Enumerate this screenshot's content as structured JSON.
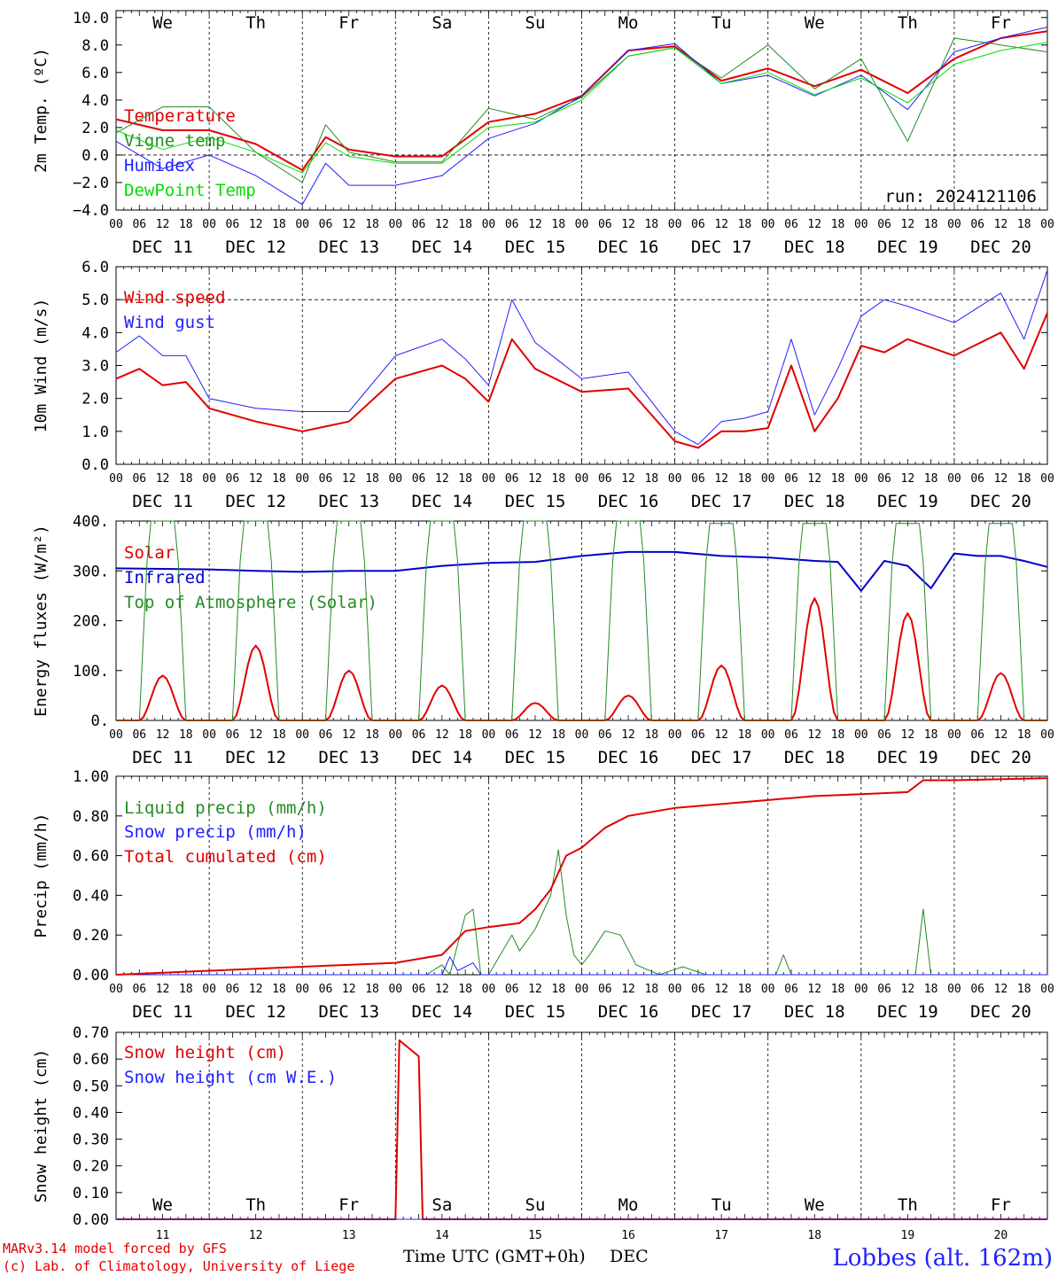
{
  "footer": {
    "model": "MARv3.14 model forced by GFS",
    "copyright": "(c) Lab. of Climatology, University of Liege",
    "station": "Lobbes (alt. 162m)",
    "time_label": "Time UTC (GMT+0h)",
    "month_label": "DEC"
  },
  "run_label": "run: 2024121106",
  "days": [
    "We",
    "Th",
    "Fr",
    "Sa",
    "Su",
    "Mo",
    "Tu",
    "We",
    "Th",
    "Fr"
  ],
  "day_colors": [
    "#000000",
    "#000000",
    "#000000",
    "#e00000",
    "#e00000",
    "#000000",
    "#000000",
    "#000000",
    "#000000",
    "#000000"
  ],
  "dates": [
    "DEC 11",
    "DEC 12",
    "DEC 13",
    "DEC 14",
    "DEC 15",
    "DEC 16",
    "DEC 17",
    "DEC 18",
    "DEC 19",
    "DEC 20"
  ],
  "date_numbers": [
    "11",
    "12",
    "13",
    "14",
    "15",
    "16",
    "17",
    "18",
    "19",
    "20"
  ],
  "hour_ticks": [
    "00",
    "06",
    "12",
    "18"
  ],
  "chart_data": [
    {
      "type": "line",
      "id": "temp",
      "ylabel": "2m Temp. (ºC)",
      "ylim": [
        -4,
        10.5
      ],
      "yticks": [
        -4,
        -2,
        0,
        2,
        4,
        6,
        8,
        10
      ],
      "ytick_labels": [
        "−4.0",
        "−2.0",
        "0.0",
        "2.0",
        "4.0",
        "6.0",
        "8.0",
        "10.0"
      ],
      "ref_line": 0,
      "show_days": true,
      "hours": [
        0,
        12,
        24,
        36,
        48,
        54,
        60,
        72,
        84,
        96,
        108,
        120,
        132,
        144,
        156,
        168,
        180,
        192,
        204,
        216,
        228,
        240
      ],
      "series": [
        {
          "name": "Temperature",
          "color": "#e00000",
          "width": 2,
          "values": [
            2.6,
            1.8,
            1.8,
            0.8,
            -1.1,
            1.3,
            0.4,
            -0.1,
            -0.1,
            2.4,
            3.0,
            4.3,
            7.6,
            7.9,
            5.4,
            6.3,
            5.0,
            6.2,
            4.5,
            7.0,
            8.5,
            9.0
          ]
        },
        {
          "name": "Vigne temp",
          "color": "#228b22",
          "width": 1,
          "values": [
            1.6,
            3.5,
            3.5,
            0.2,
            -2.0,
            2.2,
            0.2,
            -0.5,
            -0.5,
            3.4,
            2.6,
            4.2,
            7.2,
            7.8,
            5.6,
            8.0,
            4.8,
            7.0,
            1.0,
            8.5,
            8.0,
            7.5
          ]
        },
        {
          "name": "Humidex",
          "color": "#2020ff",
          "width": 1,
          "values": [
            1.0,
            -1.0,
            0.0,
            -1.5,
            -3.6,
            -0.6,
            -2.2,
            -2.2,
            -1.5,
            1.2,
            2.3,
            4.3,
            7.6,
            8.1,
            5.2,
            5.8,
            4.3,
            5.8,
            3.3,
            7.5,
            8.5,
            9.3
          ]
        },
        {
          "name": "DewPoint Temp",
          "color": "#00dd00",
          "width": 1,
          "values": [
            1.8,
            0.4,
            1.3,
            0.2,
            -1.3,
            0.9,
            -0.1,
            -0.6,
            -0.6,
            2.0,
            2.4,
            4.0,
            7.2,
            7.8,
            5.2,
            6.0,
            4.4,
            5.6,
            3.8,
            6.6,
            7.6,
            8.2
          ]
        }
      ]
    },
    {
      "type": "line",
      "id": "wind",
      "ylabel": "10m Wind (m/s)",
      "ylim": [
        0,
        6
      ],
      "yticks": [
        0,
        1,
        2,
        3,
        4,
        5,
        6
      ],
      "ytick_labels": [
        "0.0",
        "1.0",
        "2.0",
        "3.0",
        "4.0",
        "5.0",
        "6.0"
      ],
      "ref_line": 5,
      "hours": [
        0,
        6,
        12,
        18,
        24,
        36,
        48,
        60,
        72,
        84,
        90,
        96,
        102,
        108,
        120,
        132,
        144,
        150,
        156,
        162,
        168,
        174,
        180,
        186,
        192,
        198,
        204,
        216,
        228,
        234,
        240
      ],
      "series": [
        {
          "name": "Wind speed",
          "color": "#e00000",
          "width": 2,
          "values": [
            2.6,
            2.9,
            2.4,
            2.5,
            1.7,
            1.3,
            1.0,
            1.3,
            2.6,
            3.0,
            2.6,
            1.9,
            3.8,
            2.9,
            2.2,
            2.3,
            0.7,
            0.5,
            1.0,
            1.0,
            1.1,
            3.0,
            1.0,
            2.0,
            3.6,
            3.4,
            3.8,
            3.3,
            4.0,
            2.9,
            4.6
          ]
        },
        {
          "name": "Wind gust",
          "color": "#2020ff",
          "width": 1,
          "values": [
            3.4,
            3.9,
            3.3,
            3.3,
            2.0,
            1.7,
            1.6,
            1.6,
            3.3,
            3.8,
            3.2,
            2.4,
            5.0,
            3.7,
            2.6,
            2.8,
            1.0,
            0.6,
            1.3,
            1.4,
            1.6,
            3.8,
            1.5,
            2.9,
            4.5,
            5.0,
            4.8,
            4.3,
            5.2,
            3.8,
            5.9
          ]
        }
      ]
    },
    {
      "type": "line",
      "id": "energy",
      "ylabel": "Energy fluxes (W/m²)",
      "ylim": [
        0,
        400
      ],
      "yticks": [
        0,
        100,
        200,
        300,
        400
      ],
      "ytick_labels": [
        "0.",
        "100.",
        "200.",
        "300.",
        "400."
      ],
      "series": [
        {
          "name": "Solar",
          "color": "#e00000",
          "width": 2,
          "daily_peaks": [
            90,
            150,
            100,
            70,
            35,
            50,
            110,
            245,
            215,
            95
          ]
        },
        {
          "name": "Infrared",
          "color": "#0000cc",
          "width": 2,
          "hours": [
            0,
            24,
            36,
            48,
            60,
            72,
            84,
            96,
            108,
            120,
            132,
            144,
            156,
            168,
            180,
            186,
            192,
            198,
            204,
            210,
            216,
            222,
            228,
            234,
            240
          ],
          "values": [
            305,
            303,
            300,
            298,
            300,
            300,
            310,
            316,
            318,
            330,
            338,
            338,
            330,
            327,
            320,
            318,
            260,
            320,
            310,
            265,
            335,
            330,
            330,
            320,
            308
          ]
        },
        {
          "name": "Top of Atmosphere (Solar)",
          "color": "#228b22",
          "width": 1,
          "daily_peaks": [
            400,
            400,
            400,
            400,
            400,
            400,
            395,
            395,
            395,
            395
          ]
        }
      ]
    },
    {
      "type": "line",
      "id": "precip",
      "ylabel": "Precip (mm/h)",
      "ylim": [
        0,
        1
      ],
      "yticks": [
        0,
        0.2,
        0.4,
        0.6,
        0.8,
        1.0
      ],
      "ytick_labels": [
        "0.00",
        "0.20",
        "0.40",
        "0.60",
        "0.80",
        "1.00"
      ],
      "series": [
        {
          "name": "Liquid precip (mm/h)",
          "color": "#228b22",
          "width": 1,
          "hours": [
            0,
            80,
            84,
            86,
            90,
            92,
            94,
            96,
            102,
            104,
            108,
            112,
            114,
            116,
            118,
            120,
            122,
            126,
            130,
            134,
            140,
            146,
            152,
            170,
            172,
            174,
            206,
            208,
            210,
            240
          ],
          "values": [
            0,
            0,
            0.05,
            0,
            0.3,
            0.33,
            0,
            0,
            0.2,
            0.12,
            0.23,
            0.4,
            0.63,
            0.3,
            0.1,
            0.05,
            0.1,
            0.22,
            0.2,
            0.05,
            0,
            0.04,
            0,
            0,
            0.1,
            0,
            0,
            0.33,
            0,
            0
          ]
        },
        {
          "name": "Snow precip (mm/h)",
          "color": "#2020ff",
          "width": 1,
          "hours": [
            0,
            84,
            86,
            88,
            92,
            94,
            240
          ],
          "values": [
            0,
            0,
            0.09,
            0.02,
            0.06,
            0,
            0
          ]
        },
        {
          "name": "Total cumulated (cm)",
          "color": "#e00000",
          "width": 2,
          "hours": [
            0,
            24,
            48,
            72,
            84,
            90,
            96,
            104,
            108,
            112,
            116,
            120,
            126,
            132,
            144,
            156,
            168,
            180,
            192,
            204,
            208,
            216,
            240
          ],
          "values": [
            0.0,
            0.02,
            0.04,
            0.06,
            0.1,
            0.22,
            0.24,
            0.26,
            0.33,
            0.43,
            0.6,
            0.64,
            0.74,
            0.8,
            0.84,
            0.86,
            0.88,
            0.9,
            0.91,
            0.92,
            0.98,
            0.98,
            0.99
          ]
        }
      ]
    },
    {
      "type": "line",
      "id": "snow",
      "ylabel": "Snow height (cm)",
      "ylim": [
        0,
        0.7
      ],
      "yticks": [
        0,
        0.1,
        0.2,
        0.3,
        0.4,
        0.5,
        0.6,
        0.7
      ],
      "ytick_labels": [
        "0.00",
        "0.10",
        "0.20",
        "0.30",
        "0.40",
        "0.50",
        "0.60",
        "0.70"
      ],
      "show_days_bottom": true,
      "series": [
        {
          "name": "Snow height (cm)",
          "color": "#e00000",
          "width": 2,
          "hours": [
            0,
            72,
            73,
            78,
            79,
            240
          ],
          "values": [
            0,
            0,
            0.67,
            0.61,
            0,
            0
          ]
        },
        {
          "name": "Snow height (cm W.E.)",
          "color": "#2020ff",
          "width": 1,
          "hours": [
            0,
            240
          ],
          "values": [
            0,
            0
          ]
        }
      ]
    }
  ]
}
